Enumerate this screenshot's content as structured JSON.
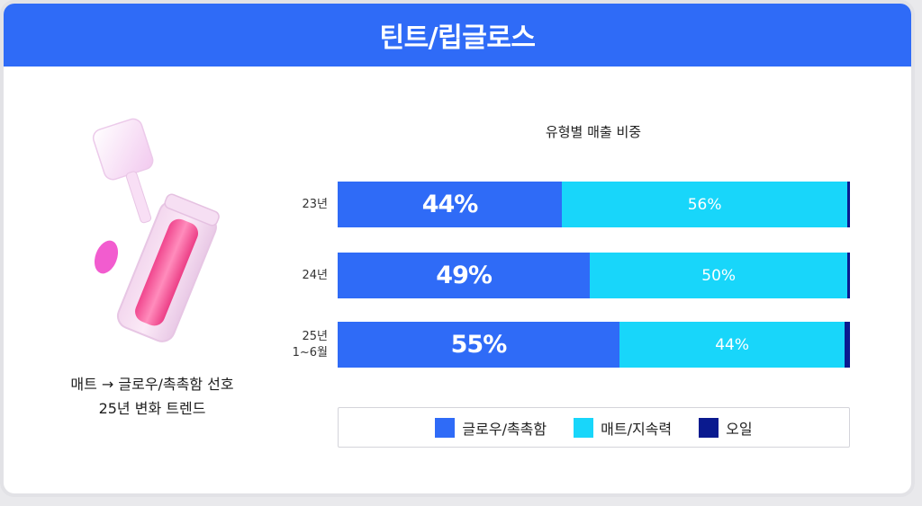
{
  "header": {
    "title": "틴트/립글로스"
  },
  "caption": {
    "line1": "매트 → 글로우/촉촉함 선호",
    "line2": "25년 변화 트렌드"
  },
  "colors": {
    "header": "#2f6bf7",
    "glow": "#2f6bf7",
    "matte": "#18d6fa",
    "oil": "#0a1a8f"
  },
  "chart_data": {
    "type": "bar",
    "stacked": true,
    "orientation": "horizontal",
    "title": "유형별 매출 비중",
    "categories": [
      "23년",
      "24년",
      "25년 1~6월"
    ],
    "category_labels": [
      [
        "23년"
      ],
      [
        "24년"
      ],
      [
        "25년",
        "1~6월"
      ]
    ],
    "series": [
      {
        "name": "글로우/촉촉함",
        "values": [
          44,
          49,
          55
        ],
        "labels": [
          "44%",
          "49%",
          "55%"
        ]
      },
      {
        "name": "매트/지속력",
        "values": [
          56,
          50,
          44
        ],
        "labels": [
          "56%",
          "50%",
          "44%"
        ]
      },
      {
        "name": "오일",
        "values": [
          0.5,
          0.5,
          1
        ],
        "labels": [
          "",
          "",
          ""
        ]
      }
    ],
    "xlim": [
      0,
      100
    ],
    "legend_position": "bottom",
    "grid": false
  }
}
